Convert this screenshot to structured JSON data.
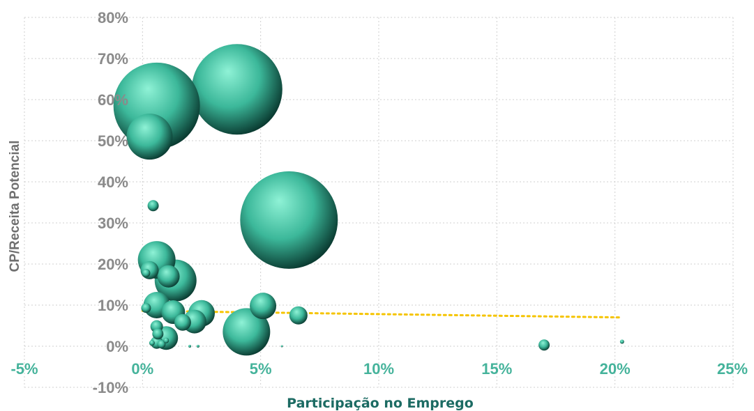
{
  "colors": {
    "bubble_light": "#8ff2d6",
    "bubble_mid": "#3cb89a",
    "bubble_dark": "#0a3b31",
    "trend": "#f5c400",
    "grid": "#cfcfcf",
    "x_tick": "#45b39b",
    "y_tick": "#8a8a8a",
    "x_label": "#1c6b63",
    "y_label": "#6f6f6f"
  },
  "chart_data": {
    "type": "scatter",
    "subtype": "bubble",
    "title": "",
    "xlabel": "Participação no Emprego",
    "ylabel": "CP/Receita Potencial",
    "xlim": [
      -5,
      25
    ],
    "ylim": [
      -10,
      80
    ],
    "x_ticks": [
      "-5%",
      "0%",
      "5%",
      "10%",
      "15%",
      "20%",
      "25%"
    ],
    "y_ticks": [
      "-10%",
      "0%",
      "10%",
      "20%",
      "30%",
      "40%",
      "50%",
      "60%",
      "70%",
      "80%"
    ],
    "grid": true,
    "legend": "none",
    "trendline": {
      "x": [
        0,
        20.3
      ],
      "y": [
        8.6,
        7.0
      ]
    },
    "points": [
      {
        "x": 0.6,
        "y": 58.5,
        "size": 62
      },
      {
        "x": 4.0,
        "y": 62.5,
        "size": 65
      },
      {
        "x": 6.2,
        "y": 30.7,
        "size": 70
      },
      {
        "x": 0.3,
        "y": 51.0,
        "size": 33
      },
      {
        "x": 0.45,
        "y": 34.2,
        "size": 8
      },
      {
        "x": 0.6,
        "y": 21.0,
        "size": 27
      },
      {
        "x": 1.4,
        "y": 16.0,
        "size": 30
      },
      {
        "x": 0.3,
        "y": 18.5,
        "size": 13
      },
      {
        "x": 1.1,
        "y": 17.0,
        "size": 16
      },
      {
        "x": 0.15,
        "y": 17.8,
        "size": 6
      },
      {
        "x": 0.6,
        "y": 10.0,
        "size": 19
      },
      {
        "x": 1.3,
        "y": 8.3,
        "size": 17
      },
      {
        "x": 2.5,
        "y": 8.0,
        "size": 19
      },
      {
        "x": 5.1,
        "y": 9.8,
        "size": 19
      },
      {
        "x": 6.6,
        "y": 7.5,
        "size": 13
      },
      {
        "x": 0.15,
        "y": 9.3,
        "size": 7
      },
      {
        "x": 2.2,
        "y": 6.0,
        "size": 17
      },
      {
        "x": 1.7,
        "y": 5.8,
        "size": 12
      },
      {
        "x": 4.4,
        "y": 3.5,
        "size": 34
      },
      {
        "x": 1.0,
        "y": 2.0,
        "size": 17
      },
      {
        "x": 0.6,
        "y": 4.8,
        "size": 9
      },
      {
        "x": 0.65,
        "y": 3.0,
        "size": 8
      },
      {
        "x": 0.6,
        "y": 0.9,
        "size": 9
      },
      {
        "x": 0.8,
        "y": 0.5,
        "size": 6
      },
      {
        "x": 0.4,
        "y": 0.8,
        "size": 4
      },
      {
        "x": 1.0,
        "y": 1.4,
        "size": 4
      },
      {
        "x": 2.0,
        "y": 0.0,
        "size": 2
      },
      {
        "x": 2.35,
        "y": 0.0,
        "size": 2
      },
      {
        "x": 5.9,
        "y": 0.0,
        "size": 1.5
      },
      {
        "x": 17.0,
        "y": 0.3,
        "size": 8
      },
      {
        "x": 20.3,
        "y": 1.1,
        "size": 3
      }
    ]
  }
}
